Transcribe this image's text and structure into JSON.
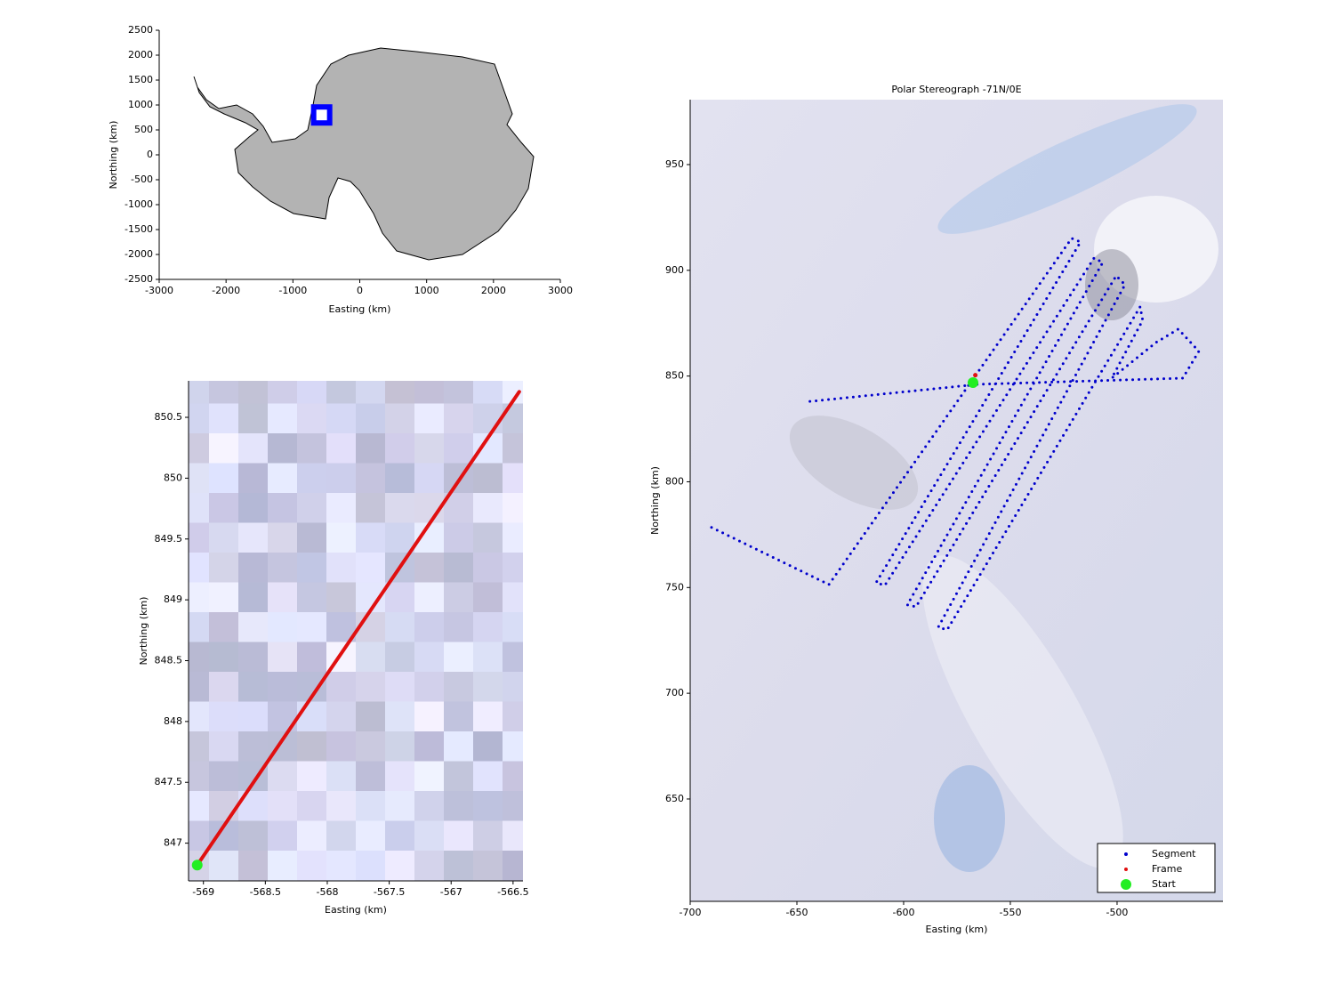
{
  "chart_data": [
    {
      "type": "map",
      "xlabel": "Easting (km)",
      "ylabel": "Northing (km)",
      "xlim": [
        -3000,
        3000
      ],
      "ylim": [
        -2500,
        2500
      ],
      "xticks": [
        -3000,
        -2000,
        -1000,
        0,
        1000,
        2000,
        3000
      ],
      "yticks": [
        -2500,
        -2000,
        -1500,
        -1000,
        -500,
        0,
        500,
        1000,
        1500,
        2000,
        2500
      ],
      "series": [
        {
          "color": "#0000ff",
          "style": "box",
          "x": [
            -570
          ],
          "values": [
            800
          ]
        }
      ]
    },
    {
      "type": "map",
      "xlabel": "Easting (km)",
      "ylabel": "Northing (km)",
      "xlim": [
        -569.12,
        -566.42
      ],
      "ylim": [
        846.69,
        850.8
      ],
      "xticks": [
        -569,
        -568.5,
        -568,
        -567.5,
        -567,
        -566.5
      ],
      "yticks": [
        847,
        847.5,
        848,
        848.5,
        849,
        849.5,
        850,
        850.5
      ],
      "series": [
        {
          "color": "#e01010",
          "style": "line",
          "x": [
            -569.05,
            -566.45
          ],
          "values": [
            846.82,
            850.71
          ]
        },
        {
          "color": "#22ee22",
          "style": "marker",
          "x": [
            -569.05
          ],
          "values": [
            846.82
          ]
        }
      ]
    },
    {
      "type": "map",
      "title": "Polar Stereograph -71N/0E",
      "xlabel": "Easting (km)",
      "ylabel": "Northing (km)",
      "xlim": [
        -700,
        -450.4
      ],
      "ylim": [
        601.6,
        980.7
      ],
      "xticks": [
        -700,
        -650,
        -600,
        -550,
        -500
      ],
      "yticks": [
        650,
        700,
        750,
        800,
        850,
        900,
        950
      ],
      "legend": "lower right",
      "series": [
        {
          "name": "Segment",
          "color": "#0000cc",
          "style": "dots",
          "x": [
            -690,
            -635,
            -521.3,
            -517.1,
            -612.9,
            -608.8,
            -510.8,
            -506.7,
            -598.3,
            -594.2,
            -500.4,
            -496.3,
            -583.8,
            -579.6,
            -489.2,
            -488,
            -502.5,
            -481.7,
            -471.3,
            -461.7,
            -469.2,
            -565,
            -646.7
          ],
          "values": [
            778.4,
            751.4,
            915.1,
            913.4,
            752.3,
            751,
            905.8,
            903.7,
            741.8,
            740.9,
            897.4,
            893.2,
            731.2,
            730,
            882.7,
            876.4,
            849,
            865.9,
            872.2,
            861.7,
            849,
            846.1,
            837.7
          ]
        },
        {
          "name": "Frame",
          "color": "#e01010",
          "style": "marker-small",
          "x": [
            -566.4
          ],
          "values": [
            850.4
          ]
        },
        {
          "name": "Start",
          "color": "#22ee22",
          "style": "marker",
          "x": [
            -567.5
          ],
          "values": [
            846.9
          ]
        }
      ]
    }
  ]
}
